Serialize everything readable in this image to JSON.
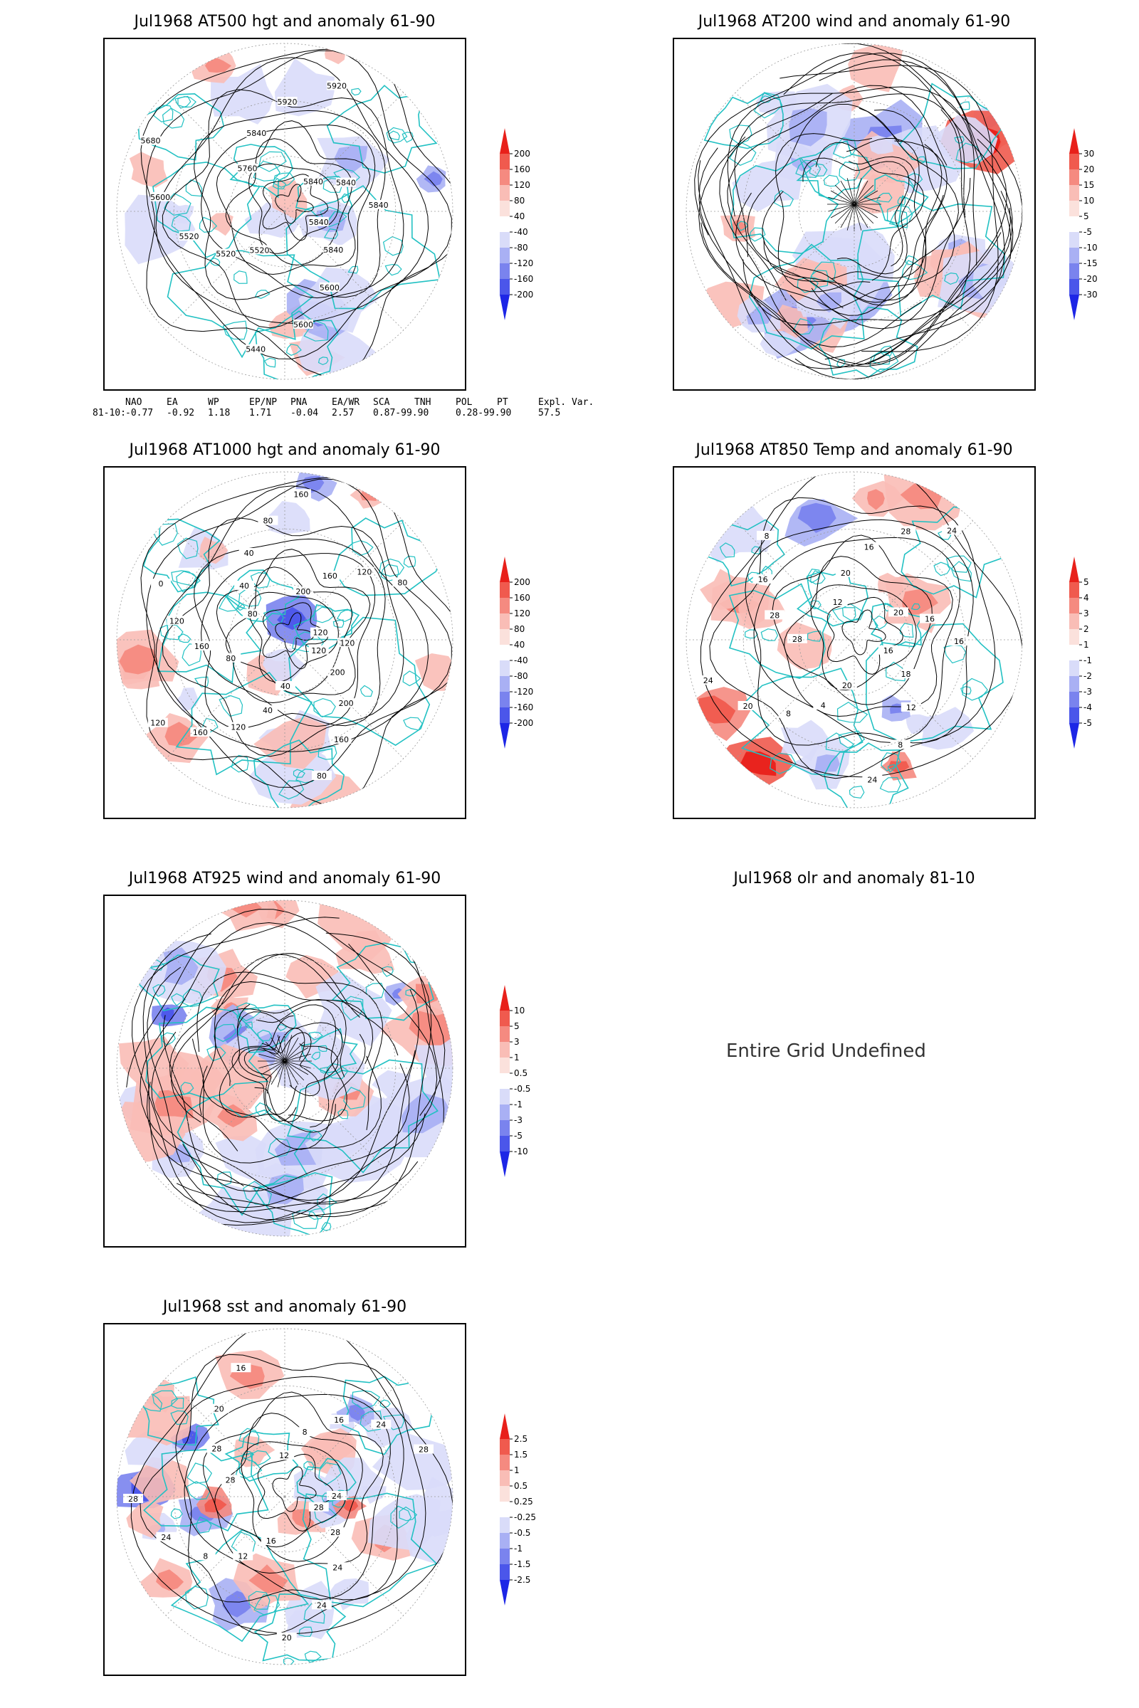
{
  "panels": [
    {
      "id": "at500",
      "title": "Jul1968 AT500 hgt and anomaly 61-90",
      "field": "height",
      "contour_labels": [
        "5840",
        "5840",
        "5600",
        "5600",
        "5440",
        "5520",
        "5520",
        "5520",
        "5600",
        "5680",
        "5760",
        "5840",
        "5920",
        "5920",
        "5840",
        "5840",
        "5840"
      ],
      "colorbar": {
        "levels": [
          "200",
          "160",
          "120",
          "80",
          "40",
          "-40",
          "-80",
          "-120",
          "-160",
          "-200"
        ],
        "colors": [
          "#e8201a",
          "#f05a4e",
          "#f58a80",
          "#f9bdb6",
          "#fbe1dc",
          "#ffffff",
          "#d9dcf9",
          "#a9b0f4",
          "#7a83ee",
          "#4b56ea",
          "#1d26e6"
        ]
      }
    },
    {
      "id": "at200",
      "title": "Jul1968 AT200 wind and anomaly 61-90",
      "field": "wind",
      "contour_labels": [],
      "colorbar": {
        "levels": [
          "30",
          "20",
          "15",
          "10",
          "5",
          "-5",
          "-10",
          "-15",
          "-20",
          "-30"
        ],
        "colors": [
          "#e8201a",
          "#f05a4e",
          "#f58a80",
          "#f9bdb6",
          "#fbe1dc",
          "#ffffff",
          "#d9dcf9",
          "#a9b0f4",
          "#7a83ee",
          "#4b56ea",
          "#1d26e6"
        ]
      }
    },
    {
      "id": "at1000",
      "title": "Jul1968 AT1000 hgt and anomaly 61-90",
      "field": "height",
      "contour_labels": [
        "120",
        "200",
        "200",
        "160",
        "80",
        "40",
        "40",
        "120",
        "160",
        "120",
        "80",
        "160",
        "120",
        "0",
        "80",
        "40",
        "40",
        "80",
        "160",
        "200",
        "160",
        "120",
        "80",
        "120",
        "120"
      ],
      "colorbar": {
        "levels": [
          "200",
          "160",
          "120",
          "80",
          "40",
          "-40",
          "-80",
          "-120",
          "-160",
          "-200"
        ],
        "colors": [
          "#e8201a",
          "#f05a4e",
          "#f58a80",
          "#f9bdb6",
          "#fbe1dc",
          "#ffffff",
          "#d9dcf9",
          "#a9b0f4",
          "#7a83ee",
          "#4b56ea",
          "#1d26e6"
        ]
      }
    },
    {
      "id": "at850",
      "title": "Jul1968 AT850 Temp and anomaly 61-90",
      "field": "temp",
      "contour_labels": [
        "16",
        "18",
        "12",
        "8",
        "24",
        "20",
        "4",
        "8",
        "20",
        "24",
        "28",
        "28",
        "16",
        "8",
        "12",
        "20",
        "16",
        "28",
        "24",
        "20",
        "16",
        "16"
      ],
      "colorbar": {
        "levels": [
          "5",
          "4",
          "3",
          "2",
          "1",
          "-1",
          "-2",
          "-3",
          "-4",
          "-5"
        ],
        "colors": [
          "#e8201a",
          "#f05a4e",
          "#f58a80",
          "#f9bdb6",
          "#fbe1dc",
          "#ffffff",
          "#d9dcf9",
          "#a9b0f4",
          "#7a83ee",
          "#4b56ea",
          "#1d26e6"
        ]
      }
    },
    {
      "id": "at925",
      "title": "Jul1968 AT925 wind and anomaly 61-90",
      "field": "wind",
      "contour_labels": [],
      "colorbar": {
        "levels": [
          "10",
          "5",
          "3",
          "1",
          "0.5",
          "-0.5",
          "-1",
          "-3",
          "-5",
          "-10"
        ],
        "colors": [
          "#e8201a",
          "#f05a4e",
          "#f58a80",
          "#f9bdb6",
          "#fbe1dc",
          "#ffffff",
          "#d9dcf9",
          "#a9b0f4",
          "#7a83ee",
          "#4b56ea",
          "#1d26e6"
        ]
      }
    },
    {
      "id": "olr",
      "title": "Jul1968 olr and anomaly 81-10",
      "message": "Entire Grid Undefined"
    },
    {
      "id": "sst",
      "title": "Jul1968 sst and anomaly 61-90",
      "field": "sst",
      "contour_labels": [
        "28",
        "28",
        "24",
        "24",
        "20",
        "16",
        "12",
        "8",
        "24",
        "28",
        "28",
        "28",
        "20",
        "16",
        "12",
        "8",
        "16",
        "24",
        "28",
        "24"
      ],
      "colorbar": {
        "levels": [
          "2.5",
          "1.5",
          "1",
          "0.5",
          "0.25",
          "-0.25",
          "-0.5",
          "-1",
          "-1.5",
          "-2.5"
        ],
        "colors": [
          "#e8201a",
          "#f05a4e",
          "#f58a80",
          "#f9bdb6",
          "#fbe1dc",
          "#ffffff",
          "#d9dcf9",
          "#a9b0f4",
          "#7a83ee",
          "#4b56ea",
          "#1d26e6"
        ]
      }
    }
  ],
  "teleconnections": {
    "headers": [
      "NAO",
      "EA",
      "WP",
      "EP/NP",
      "PNA",
      "EA/WR",
      "SCA",
      "TNH",
      "POL",
      "PT",
      "Expl. Var."
    ],
    "row_label": "81-10:",
    "values": [
      "-0.77",
      "-0.92",
      "1.18",
      "1.71",
      "-0.04",
      "2.57",
      "0.87-99.90",
      "0.28-99.90",
      "57.5"
    ]
  },
  "colors": {
    "coastline": "#22c1c3",
    "contour": "#000000",
    "grid": "#9a9a9a"
  }
}
